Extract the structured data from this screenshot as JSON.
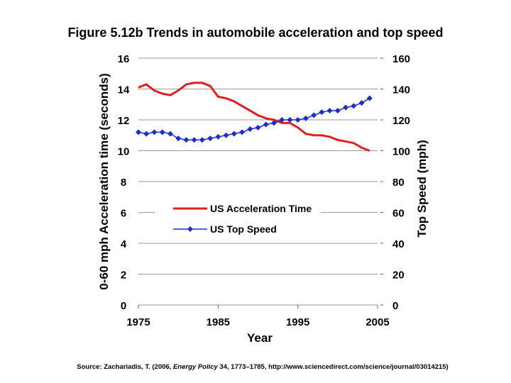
{
  "chart_data": {
    "type": "line",
    "title": "Figure 5.12b Trends in automobile acceleration and top speed",
    "xlabel": "Year",
    "ylabel": "0-60 mph Acceleration time (seconds)",
    "y2label": "Top Speed (mph)",
    "x": [
      1975,
      1976,
      1977,
      1978,
      1979,
      1980,
      1981,
      1982,
      1983,
      1984,
      1985,
      1986,
      1987,
      1988,
      1989,
      1990,
      1991,
      1992,
      1993,
      1994,
      1995,
      1996,
      1997,
      1998,
      1999,
      2000,
      2001,
      2002,
      2003,
      2004
    ],
    "series": [
      {
        "name": "US Acceleration Time",
        "color": "#e02020",
        "marker": false,
        "values": [
          14.1,
          14.3,
          13.9,
          13.7,
          13.6,
          13.9,
          14.3,
          14.4,
          14.4,
          14.2,
          13.5,
          13.4,
          13.2,
          12.9,
          12.6,
          12.3,
          12.1,
          12.0,
          11.8,
          11.8,
          11.5,
          11.1,
          11.0,
          11.0,
          10.9,
          10.7,
          10.6,
          10.5,
          10.2,
          10.0
        ]
      },
      {
        "name": "US Top Speed",
        "color": "#1a2fc8",
        "marker": true,
        "axis": "y2",
        "values": [
          112,
          111,
          112,
          112,
          111,
          108,
          107,
          107,
          107,
          108,
          109,
          110,
          111,
          112,
          114,
          115,
          117,
          118,
          120,
          120,
          120,
          121,
          123,
          125,
          126,
          126,
          128,
          129,
          131,
          134
        ]
      }
    ],
    "xlim": [
      1975,
      2005
    ],
    "xticks": [
      1975,
      1985,
      1995,
      2005
    ],
    "ylim": [
      0,
      16
    ],
    "yticks": [
      0,
      2,
      4,
      6,
      8,
      10,
      12,
      14,
      16
    ],
    "y2lim": [
      0,
      160
    ],
    "y2ticks": [
      0,
      20,
      40,
      60,
      80,
      100,
      120,
      140,
      160
    ],
    "grid": true,
    "legend": "center-left",
    "source": [
      "Source: Zachariadis, T. (2006, ",
      "Energy Policy",
      " 34, 1773–1785, http://www.sciencedirect.com/science/journal/03014215)"
    ]
  }
}
